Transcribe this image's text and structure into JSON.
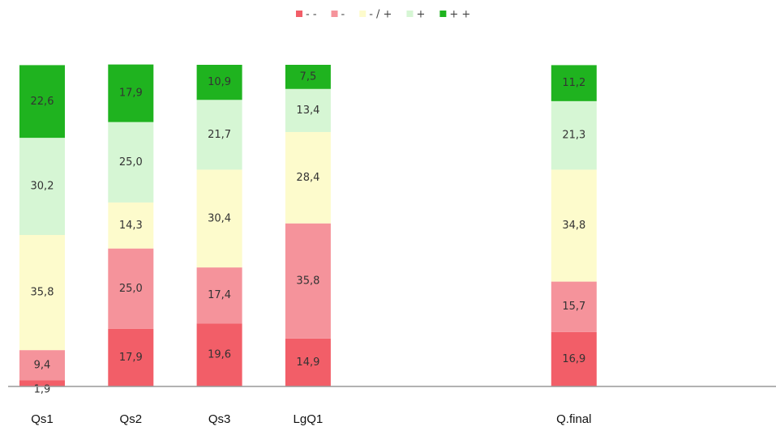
{
  "chart_data": {
    "type": "stacked_bar",
    "categories": [
      "Qs1",
      "Qs2",
      "Qs3",
      "LgQ1",
      null,
      null,
      "Q.final"
    ],
    "ylim": [
      0,
      100
    ],
    "legend": "top",
    "series": [
      {
        "name": "- -",
        "color": "#f25e68",
        "values": [
          1.9,
          17.9,
          19.6,
          14.9,
          null,
          null,
          16.9
        ],
        "value_labels": [
          "1,9",
          "17,9",
          "19,6",
          "14,9",
          null,
          null,
          "16,9"
        ]
      },
      {
        "name": "-",
        "color": "#f5939b",
        "values": [
          9.4,
          25.0,
          17.4,
          35.8,
          null,
          null,
          15.7
        ],
        "value_labels": [
          "9,4",
          "25,0",
          "17,4",
          "35,8",
          null,
          null,
          "15,7"
        ]
      },
      {
        "name": "- / +",
        "color": "#fdfbcc",
        "values": [
          35.8,
          14.3,
          30.4,
          28.4,
          null,
          null,
          34.8
        ],
        "value_labels": [
          "35,8",
          "14,3",
          "30,4",
          "28,4",
          null,
          null,
          "34,8"
        ]
      },
      {
        "name": "+",
        "color": "#d6f6d4",
        "values": [
          30.2,
          25.0,
          21.7,
          13.4,
          null,
          null,
          21.3
        ],
        "value_labels": [
          "30,2",
          "25,0",
          "21,7",
          "13,4",
          null,
          null,
          "21,3"
        ]
      },
      {
        "name": "+ +",
        "color": "#1fb31f",
        "values": [
          22.6,
          17.9,
          10.9,
          7.5,
          null,
          null,
          11.2
        ],
        "value_labels": [
          "22,6",
          "17,9",
          "10,9",
          "7,5",
          null,
          null,
          "11,2"
        ]
      }
    ]
  }
}
